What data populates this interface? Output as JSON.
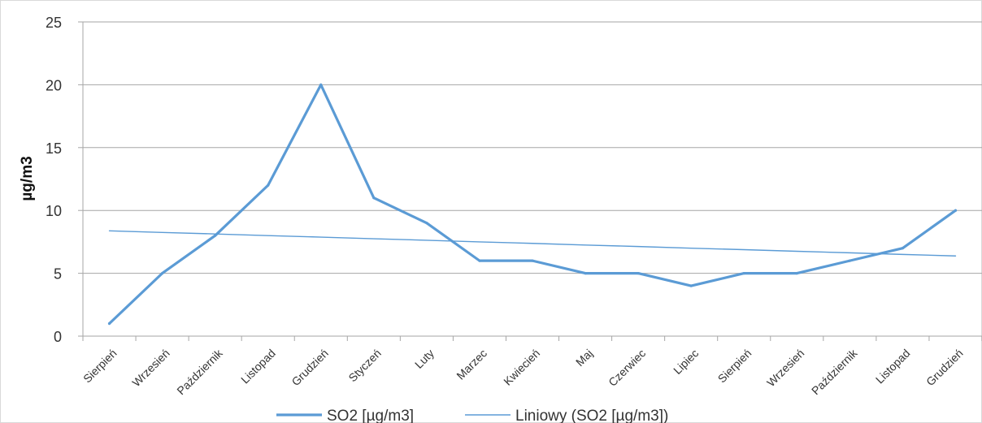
{
  "chart_data": {
    "type": "line",
    "ylabel": "µg/m3",
    "xlabel": "",
    "title": "",
    "ylim": [
      0,
      25
    ],
    "yticks": [
      0,
      5,
      10,
      15,
      20,
      25
    ],
    "grid": true,
    "legend_position": "bottom",
    "categories": [
      "Sierpień",
      "Wrzesień",
      "Październik",
      "Listopad",
      "Grudzień",
      "Styczeń",
      "Luty",
      "Marzec",
      "Kwiecień",
      "Maj",
      "Czerwiec",
      "Lipiec",
      "Sierpień",
      "Wrzesień",
      "Październik",
      "Listopad",
      "Grudzień"
    ],
    "series": [
      {
        "name": "SO2 [µg/m3]",
        "values": [
          1,
          5,
          8,
          12,
          20,
          11,
          9,
          6,
          6,
          5,
          5,
          4,
          5,
          5,
          6,
          7,
          10
        ],
        "color": "#5b9bd5"
      },
      {
        "name": "Liniowy (SO2 [µg/m3])",
        "trendline": "linear",
        "values": [
          8.38,
          8.25,
          8.13,
          8.0,
          7.88,
          7.75,
          7.63,
          7.5,
          7.38,
          7.25,
          7.13,
          7.0,
          6.88,
          6.75,
          6.63,
          6.5,
          6.38
        ],
        "color": "#5b9bd5"
      }
    ]
  }
}
